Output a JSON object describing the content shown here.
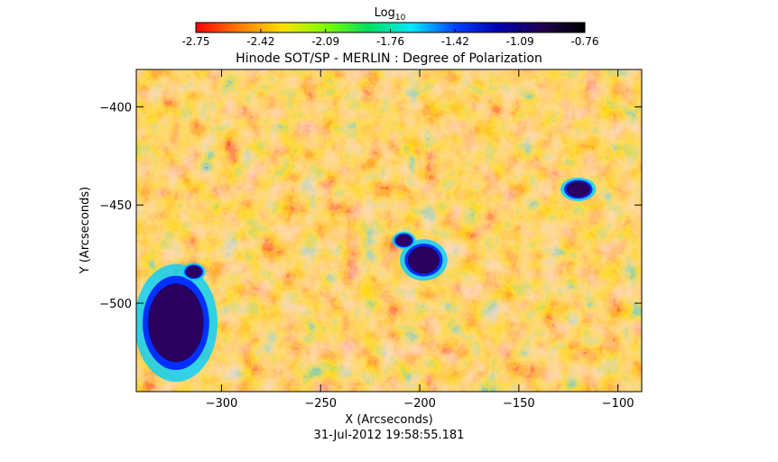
{
  "colorbar": {
    "label_main": "Log",
    "label_sub": "10",
    "ticks": [
      "-2.75",
      "-2.42",
      "-2.09",
      "-1.76",
      "-1.42",
      "-1.09",
      "-0.76"
    ],
    "colors": [
      "#ff0000",
      "#ff7a00",
      "#ffe000",
      "#7dff00",
      "#00e060",
      "#00e8ff",
      "#0040ff",
      "#0000b0",
      "#200050",
      "#000000"
    ]
  },
  "plot": {
    "title": "Hinode SOT/SP - MERLIN : Degree of Polarization",
    "xlabel": "X (Arcseconds)",
    "ylabel": "Y (Arcseconds)",
    "xlim": [
      -343,
      -88
    ],
    "ylim": [
      -545,
      -381
    ],
    "xticks": [
      -300,
      -250,
      -200,
      -150,
      -100
    ],
    "yticks": [
      -400,
      -450,
      -500
    ],
    "spots": [
      {
        "x": -323,
        "y": -510,
        "rx": 14,
        "ry": 20
      },
      {
        "x": -198,
        "y": -478,
        "rx": 8,
        "ry": 7
      },
      {
        "x": -208,
        "y": -468,
        "rx": 4,
        "ry": 3
      },
      {
        "x": -120,
        "y": -442,
        "rx": 6,
        "ry": 4
      },
      {
        "x": -314,
        "y": -484,
        "rx": 4,
        "ry": 3
      }
    ]
  },
  "timestamp": "31-Jul-2012 19:58:55.181"
}
